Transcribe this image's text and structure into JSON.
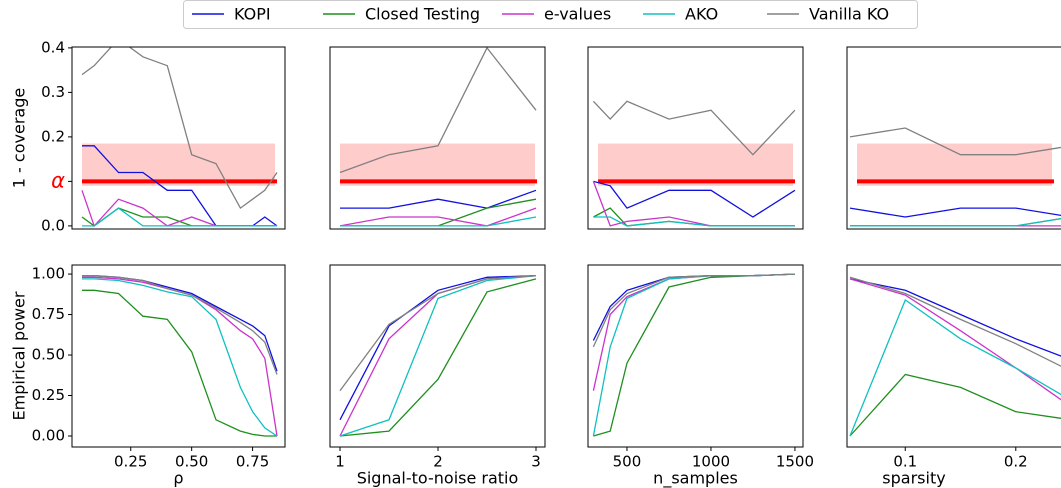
{
  "legend": [
    {
      "name": "KOPI",
      "color": "#1010e0"
    },
    {
      "name": "Closed Testing",
      "color": "#1f8f1f"
    },
    {
      "name": "e-values",
      "color": "#cc33cc"
    },
    {
      "name": "AKO",
      "color": "#10c0c0"
    },
    {
      "name": "Vanilla KO",
      "color": "#808080"
    }
  ],
  "chart_data": [
    {
      "type": "line",
      "ylabel": "1 - coverage",
      "x": [
        0.05,
        0.1,
        0.2,
        0.3,
        0.4,
        0.5,
        0.6,
        0.7,
        0.75,
        0.8,
        0.85
      ],
      "xlim": [
        0.009,
        0.883
      ],
      "ylim": [
        -0.007,
        0.402
      ],
      "yticks": [
        {
          "value": 0,
          "label": "0.0"
        },
        {
          "value": 0.1,
          "label": "α"
        },
        0.2,
        0.3,
        0.4
      ],
      "band": [
        0.09,
        0.185
      ],
      "band_color": "#ffcccc",
      "hline": 0.1,
      "hline_color": "#ff0000",
      "series": [
        {
          "values": [
            0.18,
            0.18,
            0.12,
            0.12,
            0.08,
            0.08,
            0,
            0,
            0,
            0.02,
            0
          ]
        },
        {
          "values": [
            0.02,
            0,
            0.04,
            0.02,
            0.02,
            0,
            0,
            0,
            0,
            0,
            0
          ]
        },
        {
          "values": [
            0.08,
            0,
            0.06,
            0.04,
            0,
            0.02,
            0,
            0,
            0,
            0,
            0
          ]
        },
        {
          "values": [
            0,
            0,
            0.04,
            0,
            0,
            0,
            0,
            0,
            0,
            0,
            0
          ]
        },
        {
          "values": [
            0.34,
            0.36,
            0.42,
            0.38,
            0.36,
            0.16,
            0.14,
            0.04,
            0.06,
            0.08,
            0.12
          ]
        }
      ]
    },
    {
      "type": "line",
      "x": [
        1,
        1.5,
        2,
        2.5,
        3
      ],
      "xlim": [
        0.898,
        3.092
      ],
      "ylim": [
        -0.007,
        0.402
      ],
      "band": [
        0.09,
        0.185
      ],
      "band_color": "#ffcccc",
      "hline": 0.1,
      "hline_color": "#ff0000",
      "series": [
        {
          "values": [
            0.04,
            0.04,
            0.06,
            0.04,
            0.08
          ]
        },
        {
          "values": [
            0,
            0,
            0,
            0.04,
            0.06
          ]
        },
        {
          "values": [
            0,
            0.02,
            0.02,
            0,
            0.04
          ]
        },
        {
          "values": [
            0,
            0,
            0,
            0,
            0.02
          ]
        },
        {
          "values": [
            0.12,
            0.16,
            0.18,
            0.4,
            0.26
          ]
        }
      ]
    },
    {
      "type": "line",
      "x": [
        300,
        400,
        500,
        750,
        1000,
        1250,
        1500
      ],
      "xlim": [
        268,
        1548
      ],
      "ylim": [
        -0.007,
        0.402
      ],
      "band": [
        0.09,
        0.185
      ],
      "band_color": "#ffcccc",
      "hline": 0.1,
      "hline_color": "#ff0000",
      "series": [
        {
          "values": [
            0.1,
            0.09,
            0.04,
            0.08,
            0.08,
            0.02,
            0.08
          ]
        },
        {
          "values": [
            0.02,
            0.04,
            0,
            0.01,
            0,
            0,
            0
          ]
        },
        {
          "values": [
            0.1,
            0,
            0.01,
            0.02,
            0,
            0,
            0
          ]
        },
        {
          "values": [
            0.02,
            0.02,
            0,
            0.01,
            0,
            0,
            0
          ]
        },
        {
          "values": [
            0.28,
            0.24,
            0.28,
            0.24,
            0.26,
            0.16,
            0.26
          ]
        }
      ]
    },
    {
      "type": "line",
      "x": [
        0.05,
        0.1,
        0.15,
        0.2,
        0.25
      ],
      "xlim": [
        0.0473,
        0.2418
      ],
      "ylim": [
        -0.007,
        0.402
      ],
      "band": [
        0.09,
        0.185
      ],
      "band_color": "#ffcccc",
      "hline": 0.1,
      "hline_color": "#ff0000",
      "series": [
        {
          "values": [
            0.04,
            0.02,
            0.04,
            0.04,
            0.02
          ]
        },
        {
          "values": [
            0,
            0,
            0,
            0,
            0.02
          ]
        },
        {
          "values": [
            0,
            0,
            0,
            0,
            0
          ]
        },
        {
          "values": [
            0,
            0,
            0,
            0,
            0.02
          ]
        },
        {
          "values": [
            0.2,
            0.22,
            0.16,
            0.16,
            0.18
          ]
        }
      ]
    },
    {
      "type": "line",
      "ylabel": "Empirical power",
      "xlabel": "ρ",
      "x": [
        0.05,
        0.1,
        0.2,
        0.3,
        0.4,
        0.5,
        0.6,
        0.7,
        0.75,
        0.8,
        0.85
      ],
      "xlim": [
        0.009,
        0.883
      ],
      "ylim": [
        -0.068,
        1.056
      ],
      "xticks": [
        0.25,
        {
          "value": 0.5,
          "label": "0.50"
        },
        0.75
      ],
      "yticks": [
        {
          "value": 0,
          "label": "0.00"
        },
        0.25,
        {
          "value": 0.5,
          "label": "0.50"
        },
        0.75,
        {
          "value": 1,
          "label": "1.00"
        }
      ],
      "series": [
        {
          "values": [
            0.99,
            0.99,
            0.98,
            0.96,
            0.92,
            0.88,
            0.8,
            0.72,
            0.68,
            0.62,
            0.4
          ]
        },
        {
          "values": [
            0.9,
            0.9,
            0.88,
            0.74,
            0.72,
            0.52,
            0.1,
            0.03,
            0.01,
            0,
            0
          ]
        },
        {
          "values": [
            0.98,
            0.98,
            0.97,
            0.95,
            0.91,
            0.87,
            0.78,
            0.65,
            0.6,
            0.48,
            0
          ]
        },
        {
          "values": [
            0.97,
            0.97,
            0.96,
            0.93,
            0.89,
            0.86,
            0.72,
            0.3,
            0.15,
            0.05,
            0
          ]
        },
        {
          "values": [
            0.99,
            0.99,
            0.98,
            0.96,
            0.91,
            0.87,
            0.79,
            0.7,
            0.65,
            0.58,
            0.38
          ]
        }
      ]
    },
    {
      "type": "line",
      "xlabel": "Signal-to-noise ratio",
      "x": [
        1,
        1.5,
        2,
        2.5,
        3
      ],
      "xlim": [
        0.898,
        3.092
      ],
      "ylim": [
        -0.068,
        1.056
      ],
      "xticks": [
        1,
        2,
        3
      ],
      "series": [
        {
          "values": [
            0.1,
            0.68,
            0.9,
            0.98,
            0.99
          ]
        },
        {
          "values": [
            0,
            0.03,
            0.35,
            0.89,
            0.97
          ]
        },
        {
          "values": [
            0,
            0.6,
            0.88,
            0.97,
            0.99
          ]
        },
        {
          "values": [
            0,
            0.1,
            0.85,
            0.96,
            0.99
          ]
        },
        {
          "values": [
            0.28,
            0.69,
            0.88,
            0.97,
            0.99
          ]
        }
      ]
    },
    {
      "type": "line",
      "xlabel": "n_samples",
      "x": [
        300,
        400,
        500,
        750,
        1000,
        1250,
        1500
      ],
      "xlim": [
        268,
        1548
      ],
      "ylim": [
        -0.068,
        1.056
      ],
      "xticks": [
        500,
        1000,
        1500
      ],
      "series": [
        {
          "values": [
            0.59,
            0.8,
            0.9,
            0.98,
            0.99,
            0.99,
            1
          ]
        },
        {
          "values": [
            0,
            0.03,
            0.45,
            0.92,
            0.98,
            0.99,
            1
          ]
        },
        {
          "values": [
            0.28,
            0.75,
            0.86,
            0.97,
            0.99,
            0.99,
            1
          ]
        },
        {
          "values": [
            0,
            0.55,
            0.85,
            0.97,
            0.99,
            0.99,
            1
          ]
        },
        {
          "values": [
            0.55,
            0.78,
            0.88,
            0.98,
            0.99,
            0.99,
            1
          ]
        }
      ]
    },
    {
      "type": "line",
      "xlabel": "sparsity",
      "x": [
        0.05,
        0.1,
        0.15,
        0.2,
        0.25
      ],
      "xlim": [
        0.0473,
        0.2418
      ],
      "ylim": [
        -0.068,
        1.056
      ],
      "xticks": [
        0.1,
        0.2
      ],
      "series": [
        {
          "values": [
            0.97,
            0.9,
            0.75,
            0.6,
            0.47
          ]
        },
        {
          "values": [
            0,
            0.38,
            0.3,
            0.15,
            0.1
          ]
        },
        {
          "values": [
            0.97,
            0.87,
            0.65,
            0.42,
            0.18
          ]
        },
        {
          "values": [
            0,
            0.84,
            0.6,
            0.42,
            0.22
          ]
        },
        {
          "values": [
            0.98,
            0.88,
            0.72,
            0.57,
            0.4
          ]
        }
      ]
    }
  ]
}
